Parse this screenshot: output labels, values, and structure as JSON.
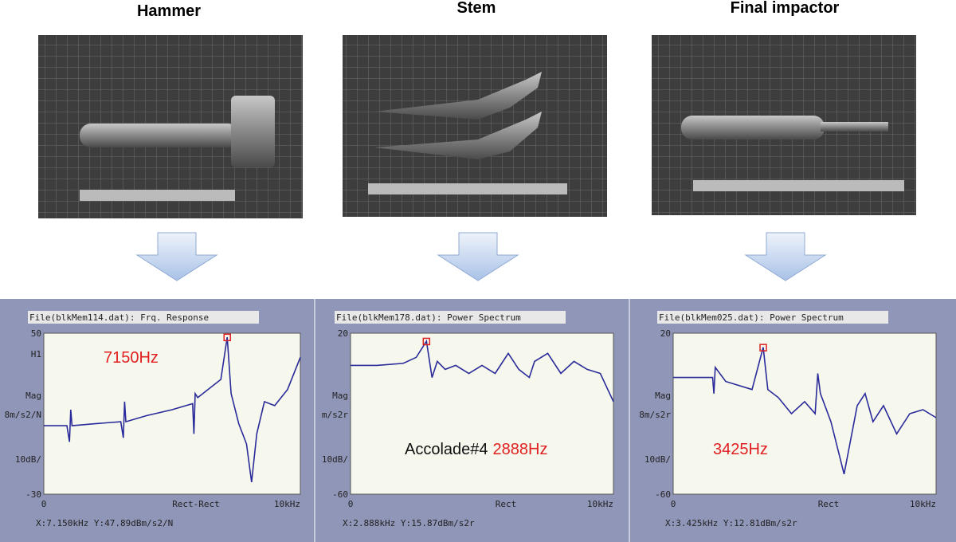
{
  "panels": [
    {
      "title": "Hammer",
      "plot": {
        "header": "File(blkMem114.dat): Frq. Response",
        "y_labels": [
          "H1",
          "Mag",
          "8m/s2/N",
          "10dB/"
        ],
        "center_label": "Rect-Rect",
        "readout": "X:7.150kHz Y:47.89dBm/s2/N",
        "annotation": "7150Hz",
        "xlim": [
          0,
          10
        ],
        "ylim": [
          -30,
          50
        ],
        "xticks": [
          0,
          {
            "value": 10,
            "label": "10kHz"
          }
        ],
        "yticks": [
          -30,
          50
        ],
        "trace": {
          "x": [
            0,
            0.9,
            1.0,
            1.05,
            1.1,
            2,
            3,
            3.1,
            3.15,
            3.2,
            4,
            5,
            5.8,
            5.85,
            5.9,
            6,
            6.9,
            7.15,
            7.3,
            7.6,
            7.9,
            8.1,
            8.3,
            8.6,
            9,
            9.5,
            10
          ],
          "y": [
            4,
            4,
            -4,
            12,
            4,
            5,
            6,
            -2,
            16,
            6,
            9,
            12,
            15,
            0,
            20,
            18,
            27,
            48,
            20,
            5,
            -5,
            -24,
            0,
            16,
            14,
            22,
            38
          ]
        },
        "peak": {
          "x": 7.15,
          "y": 47.89
        }
      }
    },
    {
      "title": "Stem",
      "plot": {
        "header": "File(blkMem178.dat): Power Spectrum",
        "y_labels": [
          "Mag",
          "m/s2r",
          "10dB/"
        ],
        "center_label": "Rect",
        "readout": "X:2.888kHz Y:15.87dBm/s2r",
        "annotation_prefix": "Accolade#4",
        "annotation": "2888Hz",
        "xlim": [
          0,
          10
        ],
        "ylim": [
          -60,
          20
        ],
        "xticks": [
          0,
          {
            "value": 10,
            "label": "10kHz"
          }
        ],
        "yticks": [
          -60,
          20
        ],
        "trace": {
          "x": [
            0,
            1,
            2,
            2.5,
            2.888,
            3.1,
            3.3,
            3.6,
            4,
            4.5,
            5,
            5.5,
            6,
            6.4,
            6.8,
            7,
            7.5,
            8,
            8.5,
            9,
            9.5,
            10
          ],
          "y": [
            4,
            4,
            5,
            8,
            16,
            -2,
            6,
            2,
            4,
            0,
            4,
            0,
            10,
            2,
            -2,
            6,
            10,
            0,
            6,
            2,
            0,
            -14
          ]
        },
        "peak": {
          "x": 2.888,
          "y": 15.87
        }
      }
    },
    {
      "title": "Final impactor",
      "plot": {
        "header": "File(blkMem025.dat): Power Spectrum",
        "y_labels": [
          "Mag",
          "8m/s2r",
          "10dB/"
        ],
        "center_label": "Rect",
        "readout": "X:3.425kHz Y:12.81dBm/s2r",
        "annotation": "3425Hz",
        "xlim": [
          0,
          10
        ],
        "ylim": [
          -60,
          20
        ],
        "xticks": [
          0,
          {
            "value": 10,
            "label": "10kHz"
          }
        ],
        "yticks": [
          -60,
          20
        ],
        "trace": {
          "x": [
            0,
            1,
            1.5,
            1.55,
            1.6,
            2,
            3,
            3.425,
            3.6,
            4,
            4.5,
            5,
            5.4,
            5.5,
            5.6,
            6,
            6.5,
            7,
            7.3,
            7.6,
            8,
            8.5,
            9,
            9.5,
            10
          ],
          "y": [
            -2,
            -2,
            -2,
            -10,
            3,
            -4,
            -8,
            13,
            -8,
            -12,
            -20,
            -14,
            -20,
            0,
            -10,
            -24,
            -50,
            -16,
            -10,
            -24,
            -16,
            -30,
            -20,
            -18,
            -22
          ]
        },
        "peak": {
          "x": 3.425,
          "y": 12.81
        }
      }
    }
  ]
}
